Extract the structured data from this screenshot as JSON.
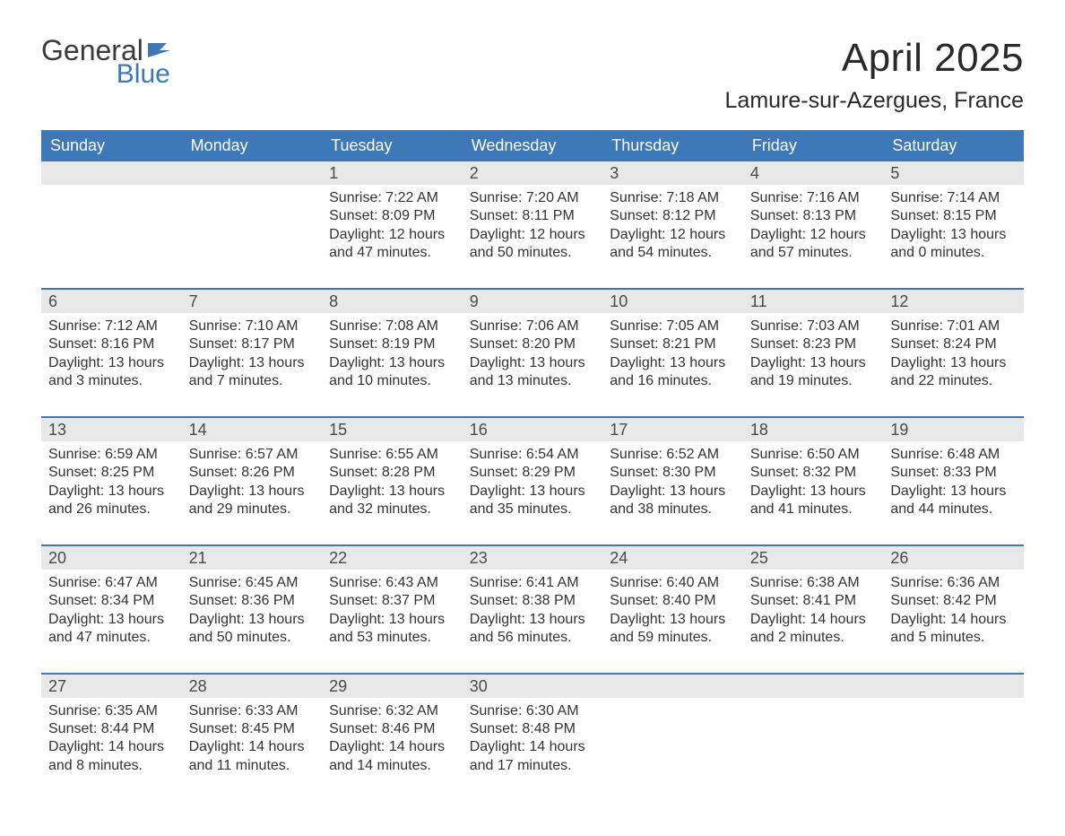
{
  "logo": {
    "text_general": "General",
    "text_blue": "Blue",
    "flag_color": "#3d79b8"
  },
  "header": {
    "month_title": "April 2025",
    "location": "Lamure-sur-Azergues, France"
  },
  "colors": {
    "header_bg": "#3d79b8",
    "daynum_bg": "#e8e8e8",
    "border": "#3d79b8",
    "text_dark": "#2a2a2a",
    "text_body": "#333333"
  },
  "day_headers": [
    "Sunday",
    "Monday",
    "Tuesday",
    "Wednesday",
    "Thursday",
    "Friday",
    "Saturday"
  ],
  "weeks": [
    [
      {
        "empty": true
      },
      {
        "empty": true
      },
      {
        "day": "1",
        "sunrise": "7:22 AM",
        "sunset": "8:09 PM",
        "daylight": "12 hours and 47 minutes."
      },
      {
        "day": "2",
        "sunrise": "7:20 AM",
        "sunset": "8:11 PM",
        "daylight": "12 hours and 50 minutes."
      },
      {
        "day": "3",
        "sunrise": "7:18 AM",
        "sunset": "8:12 PM",
        "daylight": "12 hours and 54 minutes."
      },
      {
        "day": "4",
        "sunrise": "7:16 AM",
        "sunset": "8:13 PM",
        "daylight": "12 hours and 57 minutes."
      },
      {
        "day": "5",
        "sunrise": "7:14 AM",
        "sunset": "8:15 PM",
        "daylight": "13 hours and 0 minutes."
      }
    ],
    [
      {
        "day": "6",
        "sunrise": "7:12 AM",
        "sunset": "8:16 PM",
        "daylight": "13 hours and 3 minutes."
      },
      {
        "day": "7",
        "sunrise": "7:10 AM",
        "sunset": "8:17 PM",
        "daylight": "13 hours and 7 minutes."
      },
      {
        "day": "8",
        "sunrise": "7:08 AM",
        "sunset": "8:19 PM",
        "daylight": "13 hours and 10 minutes."
      },
      {
        "day": "9",
        "sunrise": "7:06 AM",
        "sunset": "8:20 PM",
        "daylight": "13 hours and 13 minutes."
      },
      {
        "day": "10",
        "sunrise": "7:05 AM",
        "sunset": "8:21 PM",
        "daylight": "13 hours and 16 minutes."
      },
      {
        "day": "11",
        "sunrise": "7:03 AM",
        "sunset": "8:23 PM",
        "daylight": "13 hours and 19 minutes."
      },
      {
        "day": "12",
        "sunrise": "7:01 AM",
        "sunset": "8:24 PM",
        "daylight": "13 hours and 22 minutes."
      }
    ],
    [
      {
        "day": "13",
        "sunrise": "6:59 AM",
        "sunset": "8:25 PM",
        "daylight": "13 hours and 26 minutes."
      },
      {
        "day": "14",
        "sunrise": "6:57 AM",
        "sunset": "8:26 PM",
        "daylight": "13 hours and 29 minutes."
      },
      {
        "day": "15",
        "sunrise": "6:55 AM",
        "sunset": "8:28 PM",
        "daylight": "13 hours and 32 minutes."
      },
      {
        "day": "16",
        "sunrise": "6:54 AM",
        "sunset": "8:29 PM",
        "daylight": "13 hours and 35 minutes."
      },
      {
        "day": "17",
        "sunrise": "6:52 AM",
        "sunset": "8:30 PM",
        "daylight": "13 hours and 38 minutes."
      },
      {
        "day": "18",
        "sunrise": "6:50 AM",
        "sunset": "8:32 PM",
        "daylight": "13 hours and 41 minutes."
      },
      {
        "day": "19",
        "sunrise": "6:48 AM",
        "sunset": "8:33 PM",
        "daylight": "13 hours and 44 minutes."
      }
    ],
    [
      {
        "day": "20",
        "sunrise": "6:47 AM",
        "sunset": "8:34 PM",
        "daylight": "13 hours and 47 minutes."
      },
      {
        "day": "21",
        "sunrise": "6:45 AM",
        "sunset": "8:36 PM",
        "daylight": "13 hours and 50 minutes."
      },
      {
        "day": "22",
        "sunrise": "6:43 AM",
        "sunset": "8:37 PM",
        "daylight": "13 hours and 53 minutes."
      },
      {
        "day": "23",
        "sunrise": "6:41 AM",
        "sunset": "8:38 PM",
        "daylight": "13 hours and 56 minutes."
      },
      {
        "day": "24",
        "sunrise": "6:40 AM",
        "sunset": "8:40 PM",
        "daylight": "13 hours and 59 minutes."
      },
      {
        "day": "25",
        "sunrise": "6:38 AM",
        "sunset": "8:41 PM",
        "daylight": "14 hours and 2 minutes."
      },
      {
        "day": "26",
        "sunrise": "6:36 AM",
        "sunset": "8:42 PM",
        "daylight": "14 hours and 5 minutes."
      }
    ],
    [
      {
        "day": "27",
        "sunrise": "6:35 AM",
        "sunset": "8:44 PM",
        "daylight": "14 hours and 8 minutes."
      },
      {
        "day": "28",
        "sunrise": "6:33 AM",
        "sunset": "8:45 PM",
        "daylight": "14 hours and 11 minutes."
      },
      {
        "day": "29",
        "sunrise": "6:32 AM",
        "sunset": "8:46 PM",
        "daylight": "14 hours and 14 minutes."
      },
      {
        "day": "30",
        "sunrise": "6:30 AM",
        "sunset": "8:48 PM",
        "daylight": "14 hours and 17 minutes."
      },
      {
        "empty": true
      },
      {
        "empty": true
      },
      {
        "empty": true
      }
    ]
  ],
  "labels": {
    "sunrise": "Sunrise: ",
    "sunset": "Sunset: ",
    "daylight": "Daylight: "
  }
}
